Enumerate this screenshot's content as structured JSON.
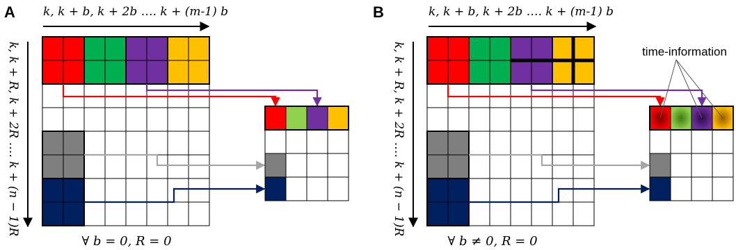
{
  "panels": [
    {
      "id": "A",
      "letter": "A",
      "top_label": "k, k + b, k + 2b …. k + (m-1) b",
      "side_label": "k, k + R, k + 2R …. k + (n − 1)R",
      "caption": "∀ b = 0, R = 0",
      "time_info": false
    },
    {
      "id": "B",
      "letter": "B",
      "top_label": "k, k + b, k + 2b …. k + (m-1) b",
      "side_label": "k, k + R, k + 2R …. k + (n − 1)R",
      "caption": "∀ b ≠ 0, R = 0",
      "time_info": true
    }
  ],
  "annotation": "time-information",
  "colors": {
    "red": "#ff0000",
    "green": "#00b050",
    "light_green": "#92d050",
    "purple": "#7030a0",
    "orange": "#ffc000",
    "gray": "#7f7f7f",
    "navy": "#002060",
    "arrow_gray": "#a6a6a6",
    "grid": "#000000"
  },
  "main_grid": {
    "cols": 8,
    "rows": 8,
    "top_blocks": [
      "red",
      "green",
      "purple",
      "orange"
    ],
    "left_blocks": [
      "gray",
      "navy"
    ]
  },
  "small_grid": {
    "cols": 4,
    "rows": 4,
    "top_row": [
      "red",
      "light_green",
      "purple",
      "orange"
    ],
    "left_cells": [
      "gray",
      "navy"
    ]
  },
  "arrows": [
    "red",
    "purple",
    "arrow_gray",
    "navy"
  ]
}
